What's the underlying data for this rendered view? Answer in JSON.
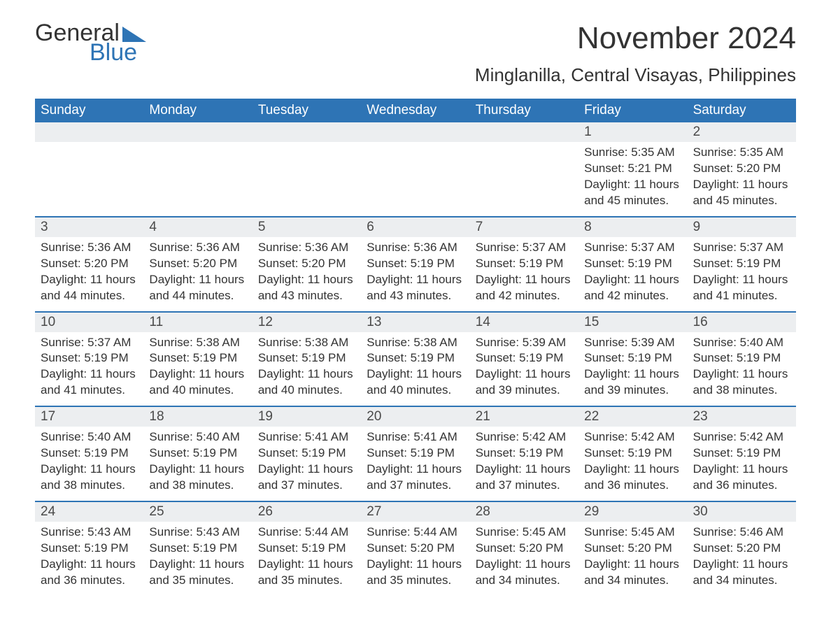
{
  "logo": {
    "word1": "General",
    "word2": "Blue"
  },
  "title": "November 2024",
  "location": "Minglanilla, Central Visayas, Philippines",
  "colors": {
    "brand_blue": "#2e74b5",
    "header_bg": "#2e74b5",
    "header_text": "#ffffff",
    "daybar_bg": "#eceef0",
    "text": "#333333",
    "page_bg": "#ffffff"
  },
  "typography": {
    "title_fontsize": 44,
    "location_fontsize": 26,
    "weekday_fontsize": 19,
    "daynum_fontsize": 19,
    "body_fontsize": 17
  },
  "weekdays": [
    "Sunday",
    "Monday",
    "Tuesday",
    "Wednesday",
    "Thursday",
    "Friday",
    "Saturday"
  ],
  "labels": {
    "sunrise": "Sunrise:",
    "sunset": "Sunset:",
    "daylight": "Daylight:"
  },
  "days": [
    {
      "n": 1,
      "dow": 5,
      "sunrise": "5:35 AM",
      "sunset": "5:21 PM",
      "daylight": "11 hours and 45 minutes."
    },
    {
      "n": 2,
      "dow": 6,
      "sunrise": "5:35 AM",
      "sunset": "5:20 PM",
      "daylight": "11 hours and 45 minutes."
    },
    {
      "n": 3,
      "dow": 0,
      "sunrise": "5:36 AM",
      "sunset": "5:20 PM",
      "daylight": "11 hours and 44 minutes."
    },
    {
      "n": 4,
      "dow": 1,
      "sunrise": "5:36 AM",
      "sunset": "5:20 PM",
      "daylight": "11 hours and 44 minutes."
    },
    {
      "n": 5,
      "dow": 2,
      "sunrise": "5:36 AM",
      "sunset": "5:20 PM",
      "daylight": "11 hours and 43 minutes."
    },
    {
      "n": 6,
      "dow": 3,
      "sunrise": "5:36 AM",
      "sunset": "5:19 PM",
      "daylight": "11 hours and 43 minutes."
    },
    {
      "n": 7,
      "dow": 4,
      "sunrise": "5:37 AM",
      "sunset": "5:19 PM",
      "daylight": "11 hours and 42 minutes."
    },
    {
      "n": 8,
      "dow": 5,
      "sunrise": "5:37 AM",
      "sunset": "5:19 PM",
      "daylight": "11 hours and 42 minutes."
    },
    {
      "n": 9,
      "dow": 6,
      "sunrise": "5:37 AM",
      "sunset": "5:19 PM",
      "daylight": "11 hours and 41 minutes."
    },
    {
      "n": 10,
      "dow": 0,
      "sunrise": "5:37 AM",
      "sunset": "5:19 PM",
      "daylight": "11 hours and 41 minutes."
    },
    {
      "n": 11,
      "dow": 1,
      "sunrise": "5:38 AM",
      "sunset": "5:19 PM",
      "daylight": "11 hours and 40 minutes."
    },
    {
      "n": 12,
      "dow": 2,
      "sunrise": "5:38 AM",
      "sunset": "5:19 PM",
      "daylight": "11 hours and 40 minutes."
    },
    {
      "n": 13,
      "dow": 3,
      "sunrise": "5:38 AM",
      "sunset": "5:19 PM",
      "daylight": "11 hours and 40 minutes."
    },
    {
      "n": 14,
      "dow": 4,
      "sunrise": "5:39 AM",
      "sunset": "5:19 PM",
      "daylight": "11 hours and 39 minutes."
    },
    {
      "n": 15,
      "dow": 5,
      "sunrise": "5:39 AM",
      "sunset": "5:19 PM",
      "daylight": "11 hours and 39 minutes."
    },
    {
      "n": 16,
      "dow": 6,
      "sunrise": "5:40 AM",
      "sunset": "5:19 PM",
      "daylight": "11 hours and 38 minutes."
    },
    {
      "n": 17,
      "dow": 0,
      "sunrise": "5:40 AM",
      "sunset": "5:19 PM",
      "daylight": "11 hours and 38 minutes."
    },
    {
      "n": 18,
      "dow": 1,
      "sunrise": "5:40 AM",
      "sunset": "5:19 PM",
      "daylight": "11 hours and 38 minutes."
    },
    {
      "n": 19,
      "dow": 2,
      "sunrise": "5:41 AM",
      "sunset": "5:19 PM",
      "daylight": "11 hours and 37 minutes."
    },
    {
      "n": 20,
      "dow": 3,
      "sunrise": "5:41 AM",
      "sunset": "5:19 PM",
      "daylight": "11 hours and 37 minutes."
    },
    {
      "n": 21,
      "dow": 4,
      "sunrise": "5:42 AM",
      "sunset": "5:19 PM",
      "daylight": "11 hours and 37 minutes."
    },
    {
      "n": 22,
      "dow": 5,
      "sunrise": "5:42 AM",
      "sunset": "5:19 PM",
      "daylight": "11 hours and 36 minutes."
    },
    {
      "n": 23,
      "dow": 6,
      "sunrise": "5:42 AM",
      "sunset": "5:19 PM",
      "daylight": "11 hours and 36 minutes."
    },
    {
      "n": 24,
      "dow": 0,
      "sunrise": "5:43 AM",
      "sunset": "5:19 PM",
      "daylight": "11 hours and 36 minutes."
    },
    {
      "n": 25,
      "dow": 1,
      "sunrise": "5:43 AM",
      "sunset": "5:19 PM",
      "daylight": "11 hours and 35 minutes."
    },
    {
      "n": 26,
      "dow": 2,
      "sunrise": "5:44 AM",
      "sunset": "5:19 PM",
      "daylight": "11 hours and 35 minutes."
    },
    {
      "n": 27,
      "dow": 3,
      "sunrise": "5:44 AM",
      "sunset": "5:20 PM",
      "daylight": "11 hours and 35 minutes."
    },
    {
      "n": 28,
      "dow": 4,
      "sunrise": "5:45 AM",
      "sunset": "5:20 PM",
      "daylight": "11 hours and 34 minutes."
    },
    {
      "n": 29,
      "dow": 5,
      "sunrise": "5:45 AM",
      "sunset": "5:20 PM",
      "daylight": "11 hours and 34 minutes."
    },
    {
      "n": 30,
      "dow": 6,
      "sunrise": "5:46 AM",
      "sunset": "5:20 PM",
      "daylight": "11 hours and 34 minutes."
    }
  ],
  "layout": {
    "first_dow": 5,
    "weeks": 5,
    "cols": 7
  }
}
